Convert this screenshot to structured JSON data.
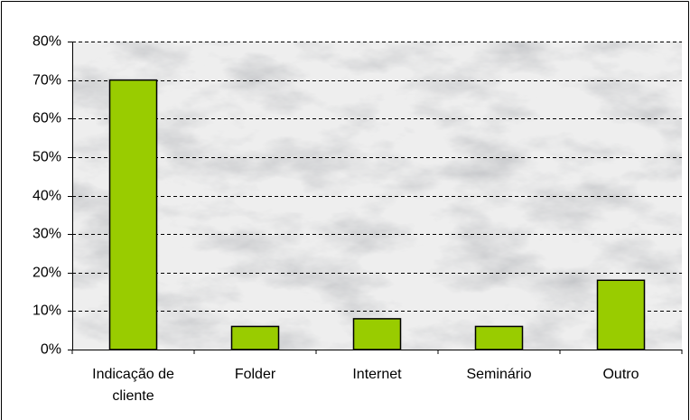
{
  "chart_data": {
    "type": "bar",
    "categories": [
      "Indicação de cliente",
      "Folder",
      "Internet",
      "Seminário",
      "Outro"
    ],
    "values": [
      70,
      6,
      8,
      6,
      18
    ],
    "color": "#99cc00",
    "ylim": [
      0,
      80
    ],
    "yticks": [
      {
        "value": 0,
        "label": "0%"
      },
      {
        "value": 10,
        "label": "10%"
      },
      {
        "value": 20,
        "label": "20%"
      },
      {
        "value": 30,
        "label": "30%"
      },
      {
        "value": 40,
        "label": "40%"
      },
      {
        "value": 50,
        "label": "50%"
      },
      {
        "value": 60,
        "label": "60%"
      },
      {
        "value": 70,
        "label": "70%"
      },
      {
        "value": 80,
        "label": "80%"
      }
    ],
    "grid": true
  }
}
